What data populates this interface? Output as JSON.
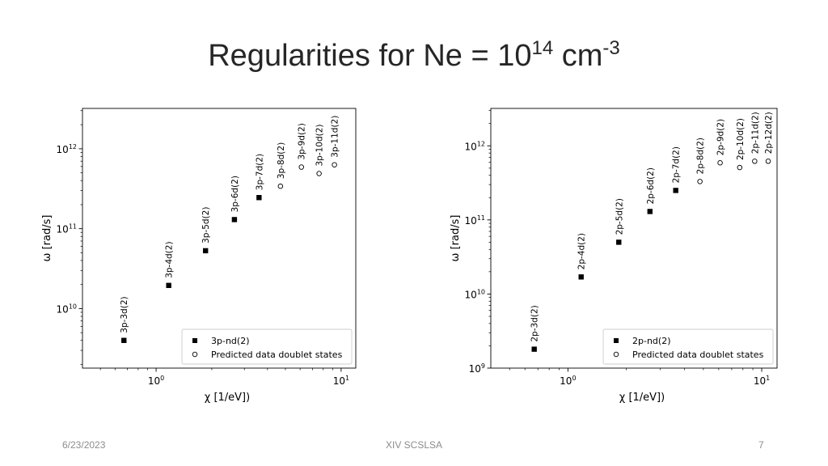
{
  "slide": {
    "title_main": "Regularities for Ne = 10",
    "title_exp1": "14",
    "title_unit": " cm",
    "title_exp2": "-3"
  },
  "footer": {
    "date": "6/23/2023",
    "center": "XIV SCSLSA",
    "page": "7"
  },
  "chart_data": [
    {
      "type": "scatter",
      "xlabel": "χ [1/eV])",
      "ylabel": "ω [rad/s]",
      "xscale": "log",
      "yscale": "log",
      "xlim": [
        0.4,
        12
      ],
      "ylim": [
        1800000000.0,
        3200000000000.0
      ],
      "xticks": [
        {
          "value": 1,
          "base": "10",
          "exp": "0"
        },
        {
          "value": 10,
          "base": "10",
          "exp": "1"
        }
      ],
      "yticks": [
        {
          "value": 10000000000.0,
          "base": "10",
          "exp": "10"
        },
        {
          "value": 100000000000.0,
          "base": "10",
          "exp": "11"
        },
        {
          "value": 1000000000000.0,
          "base": "10",
          "exp": "12"
        }
      ],
      "legend_position": "lower-right",
      "series": [
        {
          "name": "3p-nd(2)",
          "marker": "filled-square",
          "points": [
            {
              "x": 0.67,
              "y": 4000000000.0,
              "label": "3p-3d(2)"
            },
            {
              "x": 1.17,
              "y": 19500000000.0,
              "label": "3p-4d(2)"
            },
            {
              "x": 1.85,
              "y": 53000000000.0,
              "label": "3p-5d(2)"
            },
            {
              "x": 2.65,
              "y": 130000000000.0,
              "label": "3p-6d(2)"
            },
            {
              "x": 3.6,
              "y": 245000000000.0,
              "label": "3p-7d(2)"
            }
          ]
        },
        {
          "name": "Predicted data doublet states",
          "marker": "open-circle",
          "points": [
            {
              "x": 4.7,
              "y": 340000000000.0,
              "label": "3p-8d(2)"
            },
            {
              "x": 6.1,
              "y": 590000000000.0,
              "label": "3p-9d(2)"
            },
            {
              "x": 7.6,
              "y": 490000000000.0,
              "label": "3p-10d(2)"
            },
            {
              "x": 9.2,
              "y": 630000000000.0,
              "label": "3p-11d(2)"
            }
          ]
        }
      ]
    },
    {
      "type": "scatter",
      "xlabel": "χ [1/eV])",
      "ylabel": "ω [rad/s]",
      "xscale": "log",
      "yscale": "log",
      "xlim": [
        0.4,
        12
      ],
      "ylim": [
        1000000000.0,
        3200000000000.0
      ],
      "xticks": [
        {
          "value": 1,
          "base": "10",
          "exp": "0"
        },
        {
          "value": 10,
          "base": "10",
          "exp": "1"
        }
      ],
      "yticks": [
        {
          "value": 1000000000.0,
          "base": "10",
          "exp": "9"
        },
        {
          "value": 10000000000.0,
          "base": "10",
          "exp": "10"
        },
        {
          "value": 100000000000.0,
          "base": "10",
          "exp": "11"
        },
        {
          "value": 1000000000000.0,
          "base": "10",
          "exp": "12"
        }
      ],
      "legend_position": "lower-right",
      "series": [
        {
          "name": "2p-nd(2)",
          "marker": "filled-square",
          "points": [
            {
              "x": 0.67,
              "y": 1800000000.0,
              "label": "2p-3d(2)"
            },
            {
              "x": 1.17,
              "y": 17000000000.0,
              "label": "2p-4d(2)"
            },
            {
              "x": 1.83,
              "y": 50000000000.0,
              "label": "2p-5d(2)"
            },
            {
              "x": 2.65,
              "y": 130000000000.0,
              "label": "2p-6d(2)"
            },
            {
              "x": 3.6,
              "y": 250000000000.0,
              "label": "2p-7d(2)"
            }
          ]
        },
        {
          "name": "Predicted data doublet states",
          "marker": "open-circle",
          "points": [
            {
              "x": 4.8,
              "y": 330000000000.0,
              "label": "2p-8d(2)"
            },
            {
              "x": 6.1,
              "y": 590000000000.0,
              "label": "2p-9d(2)"
            },
            {
              "x": 7.7,
              "y": 510000000000.0,
              "label": "2p-10d(2)"
            },
            {
              "x": 9.2,
              "y": 620000000000.0,
              "label": "2p-11d(2)"
            },
            {
              "x": 10.8,
              "y": 620000000000.0,
              "label": "2p-12d(2)"
            }
          ]
        }
      ]
    }
  ]
}
